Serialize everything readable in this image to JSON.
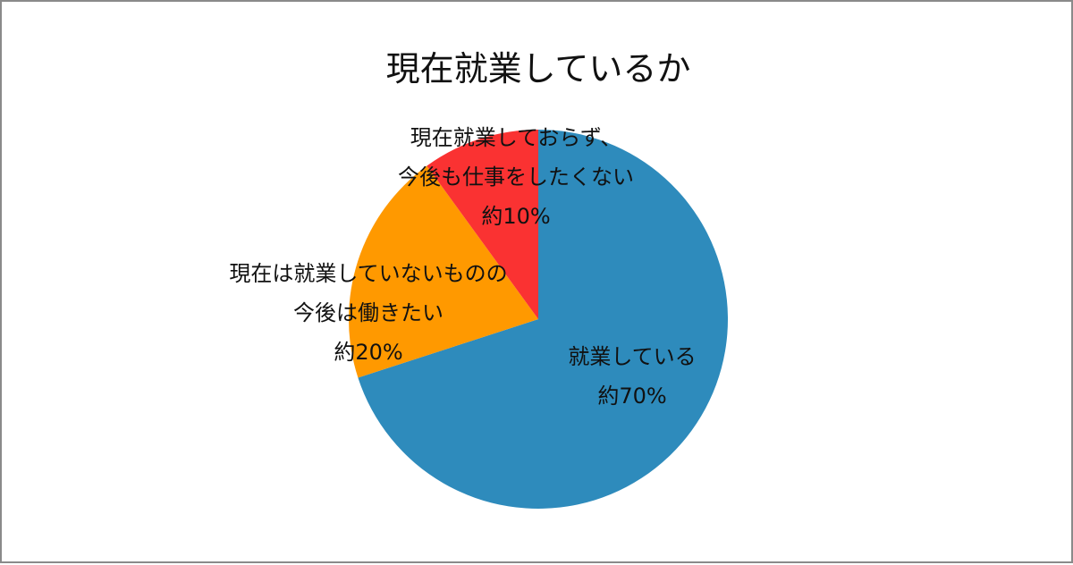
{
  "chart_data": {
    "type": "pie",
    "title": "現在就業しているか",
    "slices": [
      {
        "label_lines": [
          "就業している",
          "約70%"
        ],
        "value": 70,
        "color": "#2e8bbc"
      },
      {
        "label_lines": [
          "現在は就業していないものの",
          "今後は働きたい",
          "約20%"
        ],
        "value": 20,
        "color": "#ff9900"
      },
      {
        "label_lines": [
          "現在就業しておらず、",
          "今後も仕事をしたくない",
          "約10%"
        ],
        "value": 10,
        "color": "#fa3232"
      }
    ]
  }
}
